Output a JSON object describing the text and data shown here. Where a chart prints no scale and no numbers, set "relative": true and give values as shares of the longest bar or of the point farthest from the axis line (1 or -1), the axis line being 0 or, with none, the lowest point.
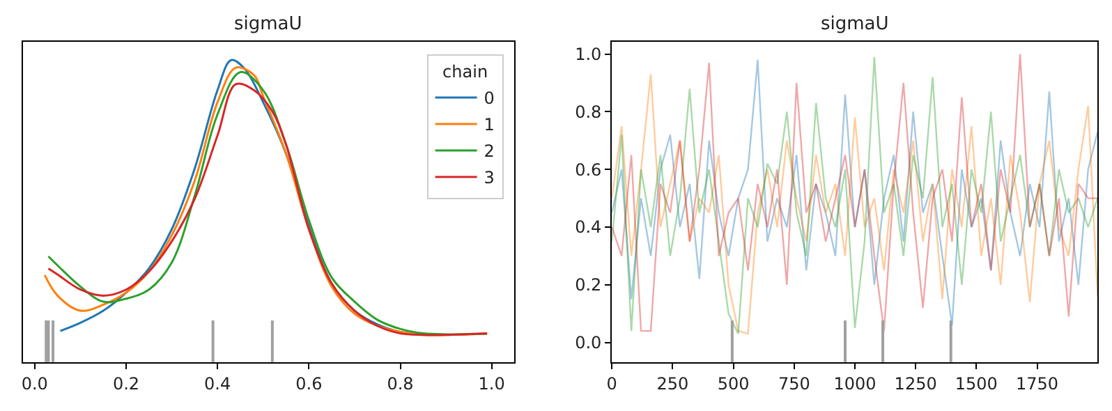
{
  "chart_data": [
    {
      "type": "line",
      "title": "sigmaU",
      "relative": true,
      "legend": "top right",
      "legend_title": "chain",
      "tick_labels": "x",
      "xlim": [
        -0.025,
        1.05
      ],
      "xticks": [
        {
          "value": 0,
          "label": "0.0"
        },
        0.2,
        0.4,
        0.6,
        0.8,
        {
          "value": 1,
          "label": "1.0"
        }
      ],
      "series": [
        {
          "name": "0",
          "color": "#1f77b4",
          "x": [
            0.056,
            0.1,
            0.15,
            0.2,
            0.25,
            0.3,
            0.35,
            0.4,
            0.43,
            0.46,
            0.5,
            0.55,
            0.6,
            0.65,
            0.7,
            0.75,
            0.8,
            0.85
          ],
          "values": [
            0.103,
            0.13,
            0.17,
            0.23,
            0.31,
            0.44,
            0.64,
            0.9,
            1.0,
            0.97,
            0.86,
            0.69,
            0.45,
            0.26,
            0.17,
            0.125,
            0.1,
            0.092
          ]
        },
        {
          "name": "1",
          "color": "#ff7f0e",
          "x": [
            0.022,
            0.05,
            0.1,
            0.15,
            0.2,
            0.25,
            0.3,
            0.35,
            0.4,
            0.44,
            0.48,
            0.5,
            0.55,
            0.6,
            0.65,
            0.7,
            0.75,
            0.8,
            0.85,
            0.9,
            0.99
          ],
          "values": [
            0.288,
            0.22,
            0.17,
            0.19,
            0.23,
            0.3,
            0.42,
            0.6,
            0.86,
            0.975,
            0.95,
            0.88,
            0.69,
            0.44,
            0.25,
            0.16,
            0.12,
            0.1,
            0.09,
            0.09,
            0.094
          ]
        },
        {
          "name": "2",
          "color": "#2ca02c",
          "x": [
            0.03,
            0.05,
            0.1,
            0.15,
            0.2,
            0.25,
            0.3,
            0.35,
            0.4,
            0.45,
            0.5,
            0.55,
            0.6,
            0.65,
            0.7,
            0.75,
            0.8,
            0.85,
            0.9,
            0.99
          ],
          "values": [
            0.35,
            0.32,
            0.25,
            0.2,
            0.21,
            0.24,
            0.33,
            0.55,
            0.82,
            0.96,
            0.9,
            0.72,
            0.47,
            0.28,
            0.2,
            0.14,
            0.11,
            0.095,
            0.092,
            0.094
          ]
        },
        {
          "name": "3",
          "color": "#d62728",
          "x": [
            0.03,
            0.05,
            0.1,
            0.15,
            0.2,
            0.25,
            0.3,
            0.35,
            0.4,
            0.44,
            0.48,
            0.52,
            0.55,
            0.6,
            0.65,
            0.7,
            0.75,
            0.8,
            0.85,
            0.9,
            0.99
          ],
          "values": [
            0.31,
            0.29,
            0.24,
            0.22,
            0.24,
            0.3,
            0.4,
            0.54,
            0.75,
            0.92,
            0.9,
            0.83,
            0.72,
            0.44,
            0.26,
            0.17,
            0.12,
            0.095,
            0.09,
            0.09,
            0.095
          ]
        }
      ],
      "ref_lines": [
        {
          "axis": "x",
          "value": 0.025,
          "color": "#a0a0a0"
        },
        {
          "axis": "x",
          "value": 0.03,
          "color": "#a0a0a0"
        },
        {
          "axis": "x",
          "value": 0.04,
          "color": "#a0a0a0"
        },
        {
          "axis": "x",
          "value": 0.39,
          "color": "#a0a0a0"
        },
        {
          "axis": "x",
          "value": 0.52,
          "color": "#a0a0a0"
        }
      ]
    },
    {
      "type": "line",
      "title": "sigmaU",
      "xlim": [
        0,
        1999
      ],
      "xticks": [
        0,
        250,
        500,
        750,
        1000,
        1250,
        1500,
        1750
      ],
      "ylim": [
        -0.068,
        1.042
      ],
      "yticks": [
        {
          "value": 0,
          "label": "0.0"
        },
        0.2,
        0.4,
        0.6,
        0.8,
        {
          "value": 1,
          "label": "1.0"
        }
      ],
      "x": [
        0,
        40,
        80,
        120,
        160,
        200,
        240,
        280,
        320,
        360,
        400,
        440,
        480,
        520,
        560,
        600,
        640,
        680,
        720,
        760,
        800,
        840,
        880,
        920,
        960,
        1000,
        1040,
        1080,
        1120,
        1160,
        1200,
        1240,
        1280,
        1320,
        1360,
        1400,
        1440,
        1480,
        1520,
        1560,
        1600,
        1640,
        1680,
        1720,
        1760,
        1800,
        1840,
        1880,
        1920,
        1960,
        1999
      ],
      "series": [
        {
          "color": "#1f77b4",
          "values": [
            0.45,
            0.6,
            0.15,
            0.5,
            0.3,
            0.6,
            0.72,
            0.4,
            0.55,
            0.22,
            0.7,
            0.45,
            0.3,
            0.5,
            0.6,
            0.98,
            0.35,
            0.5,
            0.4,
            0.65,
            0.25,
            0.55,
            0.45,
            0.3,
            0.86,
            0.4,
            0.6,
            0.2,
            0.5,
            0.65,
            0.35,
            0.8,
            0.45,
            0.55,
            0.3,
            0.06,
            0.6,
            0.4,
            0.5,
            0.25,
            0.7,
            0.45,
            0.3,
            0.55,
            0.4,
            0.87,
            0.35,
            0.5,
            0.2,
            0.6,
            0.73
          ]
        },
        {
          "color": "#ff7f0e",
          "values": [
            0.5,
            0.75,
            0.3,
            0.6,
            0.93,
            0.4,
            0.55,
            0.7,
            0.35,
            0.5,
            0.45,
            0.65,
            0.2,
            0.04,
            0.03,
            0.45,
            0.6,
            0.4,
            0.7,
            0.5,
            0.35,
            0.65,
            0.45,
            0.55,
            0.3,
            0.78,
            0.4,
            0.5,
            0.25,
            0.6,
            0.45,
            0.7,
            0.35,
            0.55,
            0.15,
            0.6,
            0.4,
            0.75,
            0.3,
            0.5,
            0.2,
            0.65,
            0.45,
            0.14,
            0.55,
            0.7,
            0.4,
            0.3,
            0.6,
            0.82,
            0.16
          ]
        },
        {
          "color": "#2ca02c",
          "values": [
            0.35,
            0.72,
            0.04,
            0.6,
            0.4,
            0.65,
            0.3,
            0.5,
            0.88,
            0.45,
            0.6,
            0.35,
            0.1,
            0.03,
            0.5,
            0.4,
            0.62,
            0.55,
            0.8,
            0.45,
            0.3,
            0.83,
            0.5,
            0.4,
            0.6,
            0.05,
            0.35,
            0.99,
            0.45,
            0.55,
            0.3,
            0.65,
            0.5,
            0.92,
            0.4,
            0.55,
            0.2,
            0.6,
            0.45,
            0.8,
            0.35,
            0.5,
            0.65,
            0.4,
            0.55,
            0.3,
            0.6,
            0.45,
            0.5,
            0.4,
            0.5
          ]
        },
        {
          "color": "#d62728",
          "values": [
            0.4,
            0.3,
            0.65,
            0.04,
            0.04,
            0.55,
            0.45,
            0.7,
            0.35,
            0.6,
            0.97,
            0.3,
            0.45,
            0.5,
            0.25,
            0.55,
            0.4,
            0.6,
            0.2,
            0.9,
            0.45,
            0.55,
            0.35,
            0.5,
            0.65,
            0.4,
            0.6,
            0.3,
            0.04,
            0.55,
            0.9,
            0.45,
            0.12,
            0.5,
            0.6,
            0.35,
            0.85,
            0.4,
            0.55,
            0.25,
            0.6,
            0.45,
            1.0,
            0.4,
            0.55,
            0.3,
            0.5,
            0.09,
            0.55,
            0.5,
            0.5
          ]
        }
      ],
      "ref_lines": [
        {
          "axis": "x",
          "value": 495,
          "color": "#a0a0a0"
        },
        {
          "axis": "x",
          "value": 960,
          "color": "#a0a0a0"
        },
        {
          "axis": "x",
          "value": 1115,
          "color": "#a0a0a0"
        },
        {
          "axis": "x",
          "value": 1395,
          "color": "#a0a0a0"
        }
      ]
    }
  ]
}
